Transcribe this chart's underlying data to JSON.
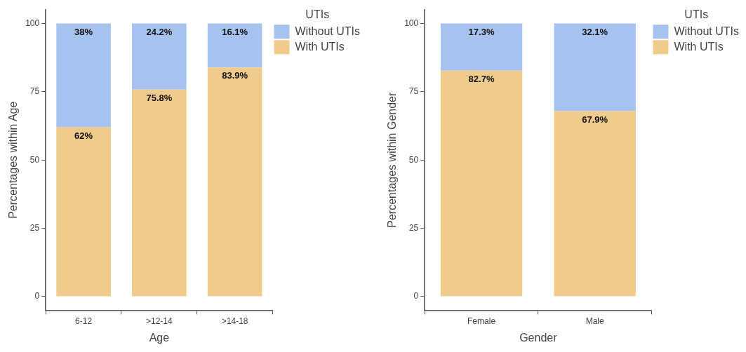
{
  "chart_data": [
    {
      "type": "bar",
      "stacked": true,
      "xlabel": "Age",
      "ylabel": "Percentages within Age",
      "legend_title": "UTIs",
      "legend": "top right",
      "grid": false,
      "categories": [
        "6-12",
        ">12-14",
        ">14-18"
      ],
      "ylim": [
        -5,
        105
      ],
      "yticks": [
        0,
        25,
        50,
        75,
        100
      ],
      "series": [
        {
          "name": "With UTIs",
          "color": "#efcb8c",
          "values": [
            62,
            75.8,
            83.9
          ],
          "value_labels": [
            "62%",
            "75.8%",
            "83.9%"
          ]
        },
        {
          "name": "Without UTIs",
          "color": "#a6c3ef",
          "values": [
            38,
            24.2,
            16.1
          ],
          "value_labels": [
            "38%",
            "24.2%",
            "16.1%"
          ]
        }
      ]
    },
    {
      "type": "bar",
      "stacked": true,
      "xlabel": "Gender",
      "ylabel": "Percentages within Gender",
      "legend_title": "UTIs",
      "legend": "top right",
      "grid": false,
      "categories": [
        "Female",
        "Male"
      ],
      "ylim": [
        -5,
        105
      ],
      "yticks": [
        0,
        25,
        50,
        75,
        100
      ],
      "series": [
        {
          "name": "With UTIs",
          "color": "#efcb8c",
          "values": [
            82.7,
            67.9
          ],
          "value_labels": [
            "82.7%",
            "67.9%"
          ]
        },
        {
          "name": "Without UTIs",
          "color": "#a6c3ef",
          "values": [
            17.3,
            32.1
          ],
          "value_labels": [
            "17.3%",
            "32.1%"
          ]
        }
      ]
    }
  ]
}
